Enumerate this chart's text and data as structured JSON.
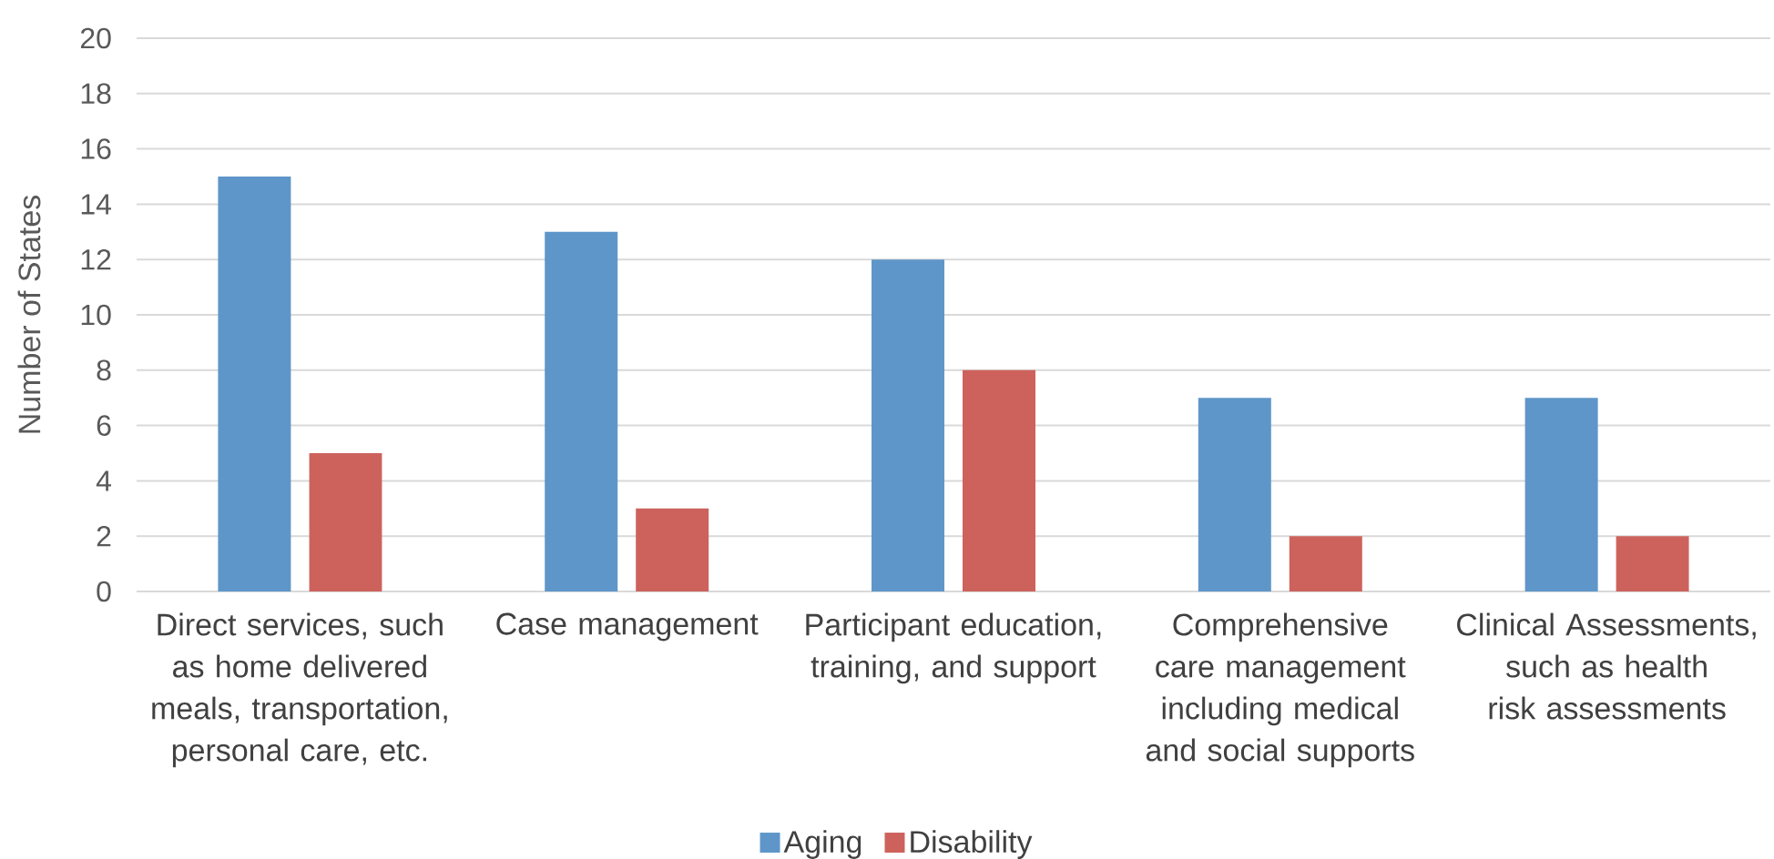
{
  "chart_data": {
    "type": "bar",
    "ylabel": "Number of States",
    "categories": [
      "Direct services, such as home delivered meals, transportation, personal care, etc.",
      "Case management",
      "Participant education, training, and support",
      "Comprehensive care management including medical and social supports",
      "Clinical Assessments, such as health risk assessments"
    ],
    "series": [
      {
        "name": "Aging",
        "color": "#5f96c9",
        "values": [
          15,
          13,
          12,
          7,
          7
        ]
      },
      {
        "name": "Disability",
        "color": "#cd625c",
        "values": [
          5,
          3,
          8,
          2,
          2
        ]
      }
    ],
    "ylim": [
      0,
      20
    ],
    "yticks": [
      0,
      2,
      4,
      6,
      8,
      10,
      12,
      14,
      16,
      18,
      20
    ],
    "grid": "y",
    "legend": "bottom"
  }
}
